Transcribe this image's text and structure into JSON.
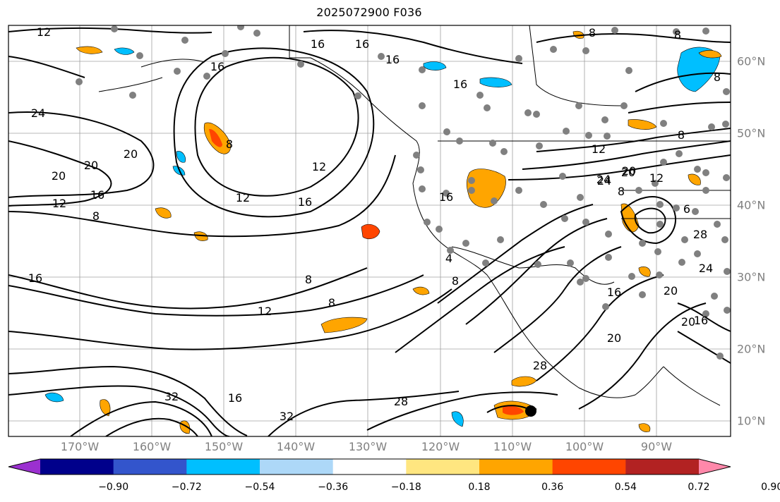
{
  "title": "2025072900 F036",
  "map": {
    "lon_labels": [
      "170°W",
      "160°W",
      "150°W",
      "140°W",
      "130°W",
      "120°W",
      "110°W",
      "100°W",
      "90°W"
    ],
    "lat_labels": [
      "60°N",
      "50°N",
      "40°N",
      "30°N",
      "20°N",
      "10°N"
    ],
    "contour_labels": [
      {
        "text": "12"
      },
      {
        "text": "16"
      },
      {
        "text": "16"
      },
      {
        "text": "16"
      },
      {
        "text": "16"
      },
      {
        "text": "16"
      },
      {
        "text": "8"
      },
      {
        "text": "8"
      },
      {
        "text": "24"
      },
      {
        "text": "20"
      },
      {
        "text": "20"
      },
      {
        "text": "20"
      },
      {
        "text": "16"
      },
      {
        "text": "12"
      },
      {
        "text": "8"
      },
      {
        "text": "12"
      },
      {
        "text": "12"
      },
      {
        "text": "16"
      },
      {
        "text": "16"
      },
      {
        "text": "20"
      },
      {
        "text": "24"
      },
      {
        "text": "8"
      },
      {
        "text": "16"
      },
      {
        "text": "12"
      },
      {
        "text": "8"
      },
      {
        "text": "8"
      },
      {
        "text": "4"
      },
      {
        "text": "8"
      },
      {
        "text": "32"
      },
      {
        "text": "16"
      },
      {
        "text": "32"
      },
      {
        "text": "28"
      },
      {
        "text": "28"
      },
      {
        "text": "12"
      },
      {
        "text": "20"
      },
      {
        "text": "24"
      },
      {
        "text": "12"
      },
      {
        "text": "8"
      },
      {
        "text": "6"
      },
      {
        "text": "28"
      },
      {
        "text": "24"
      },
      {
        "text": "20"
      },
      {
        "text": "16"
      },
      {
        "text": "20"
      },
      {
        "text": "16"
      },
      {
        "text": "20"
      },
      {
        "text": "8"
      },
      {
        "text": "8"
      }
    ]
  },
  "colorbar": {
    "colors": [
      "#9b30d0",
      "#00008b",
      "#3355cc",
      "#00bfff",
      "#add8f8",
      "#ffffff",
      "#ffe680",
      "#ffa500",
      "#ff4500",
      "#b22222",
      "#ff88aa"
    ],
    "tick_labels": [
      "−0.90",
      "−0.72",
      "−0.54",
      "−0.36",
      "−0.18",
      "0.18",
      "0.36",
      "0.54",
      "0.72",
      "0.90"
    ]
  }
}
